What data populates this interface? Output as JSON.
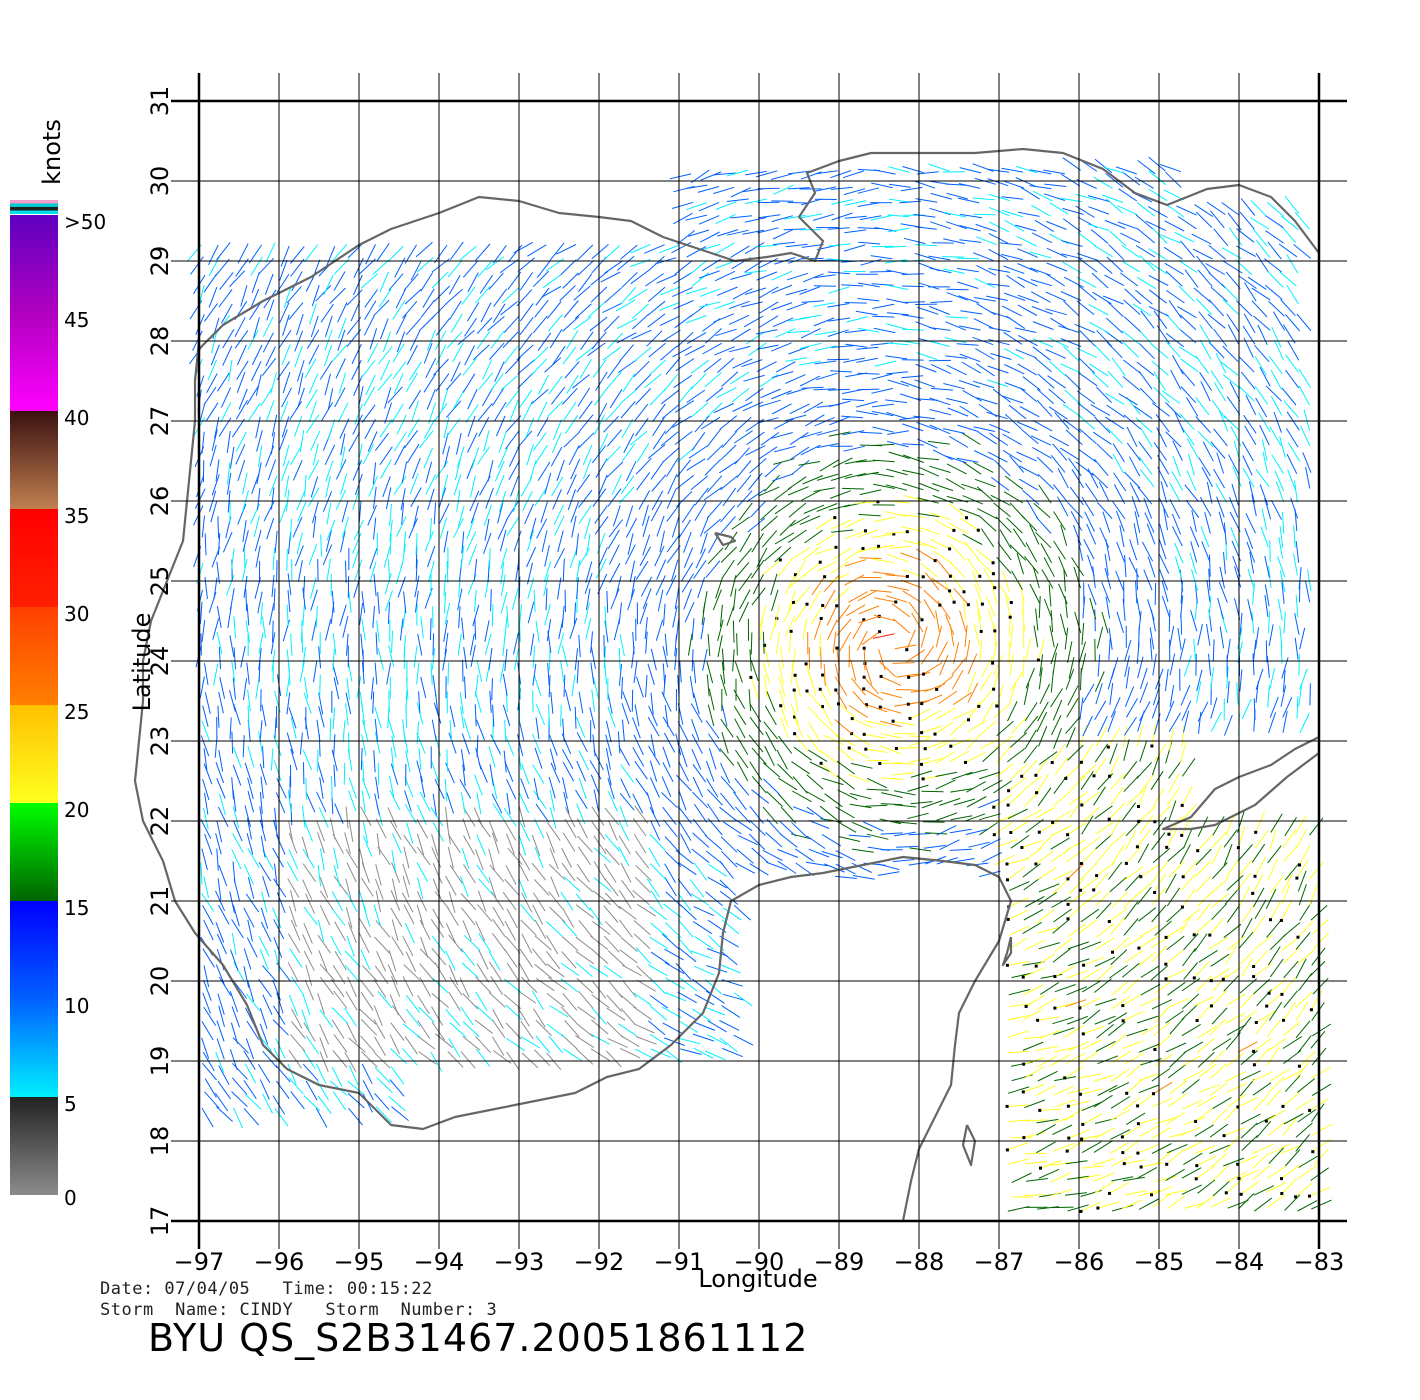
{
  "map": {
    "lon_range": [
      -97,
      -83
    ],
    "lat_range": [
      17,
      31
    ],
    "lon_ticks": [
      -97,
      -96,
      -95,
      -94,
      -93,
      -92,
      -91,
      -90,
      -89,
      -88,
      -87,
      -86,
      -85,
      -84,
      -83
    ],
    "lat_ticks": [
      17,
      18,
      19,
      20,
      21,
      22,
      23,
      24,
      25,
      26,
      27,
      28,
      29,
      30,
      31
    ],
    "xlabel": "Longitude",
    "ylabel": "Latitude",
    "grid": true,
    "coast_color": "#666666"
  },
  "colorbar": {
    "unit": "knots",
    "labels": [
      ">50",
      "45",
      "40",
      "35",
      "30",
      "25",
      "20",
      "15",
      "10",
      "5",
      "0"
    ],
    "stops": [
      {
        "value": 0,
        "color": "#8c8c8c"
      },
      {
        "value": 5,
        "color": "#222222"
      },
      {
        "value": 5,
        "color": "#00f0ff"
      },
      {
        "value": 10,
        "color": "#0060ff"
      },
      {
        "value": 15,
        "color": "#0000ff"
      },
      {
        "value": 15,
        "color": "#006400"
      },
      {
        "value": 20,
        "color": "#00ff00"
      },
      {
        "value": 20,
        "color": "#ffff20"
      },
      {
        "value": 25,
        "color": "#ffc000"
      },
      {
        "value": 25,
        "color": "#ff8000"
      },
      {
        "value": 30,
        "color": "#ff4000"
      },
      {
        "value": 30,
        "color": "#ff2000"
      },
      {
        "value": 35,
        "color": "#ff0000"
      },
      {
        "value": 35,
        "color": "#c08050"
      },
      {
        "value": 40,
        "color": "#3a1010"
      },
      {
        "value": 40,
        "color": "#ff00ff"
      },
      {
        "value": 45,
        "color": "#b000c0"
      },
      {
        "value": 50,
        "color": "#6000c0"
      }
    ]
  },
  "info": {
    "date_line": "Date: 07/04/05   Time: 00:15:22",
    "storm_line": "Storm  Name: CINDY   Storm  Number: 3",
    "file_id": "BYU  QS_S2B31467.20051861112"
  }
}
